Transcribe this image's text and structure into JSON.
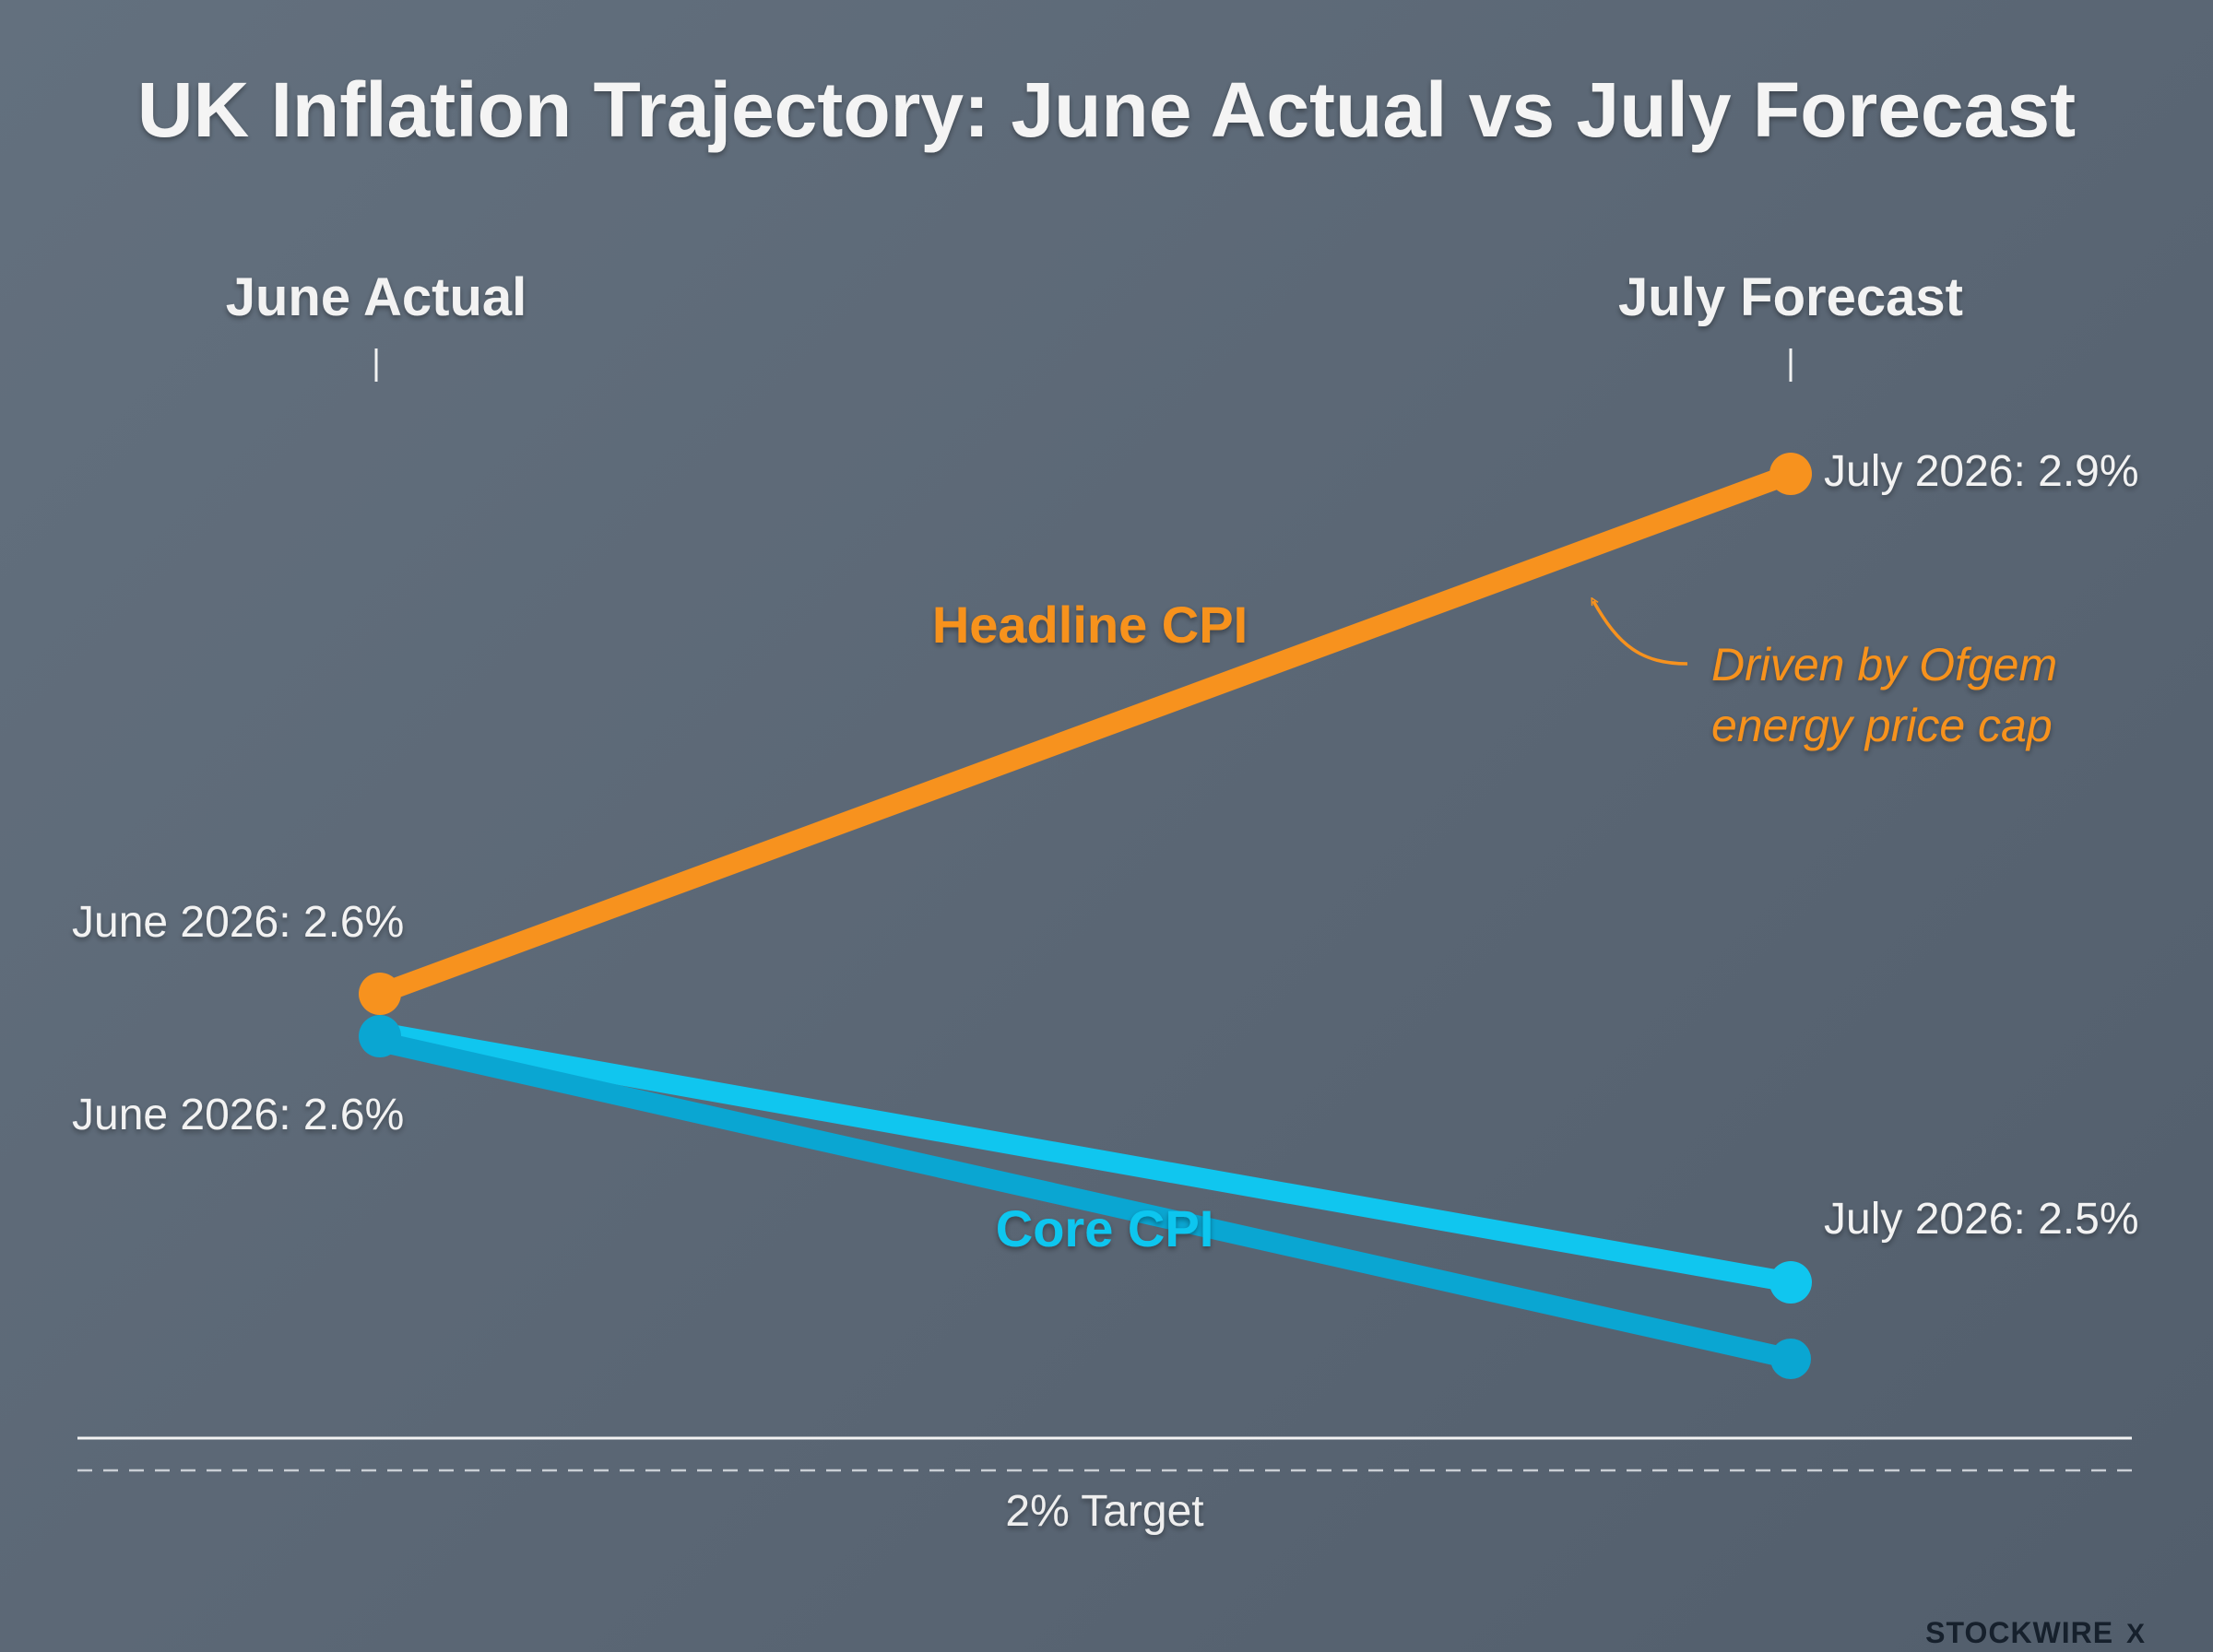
{
  "title": "UK Inflation Trajectory: June Actual vs July Forecast",
  "columns": {
    "left_label": "June Actual",
    "right_label": "July Forecast"
  },
  "annotation": {
    "line1": "Driven by Ofgem",
    "line2": "energy price cap"
  },
  "target_label": "2% Target",
  "brand": "STOCKWIRE",
  "brand_mark": "X",
  "colors": {
    "headline": "#f7921e",
    "core": "#10c6ef",
    "core_dark": "#0aa6d2",
    "text": "#f2f2f2"
  },
  "chart_data": {
    "type": "line",
    "categories": [
      "June Actual",
      "July Forecast"
    ],
    "series": [
      {
        "name": "Headline CPI",
        "values": [
          2.6,
          2.9
        ],
        "start_label": "June 2026: 2.6%",
        "end_label": "July 2026: 2.9%"
      },
      {
        "name": "Core CPI",
        "values": [
          2.6,
          2.5
        ],
        "start_label": "June 2026: 2.6%",
        "end_label": "July 2026: 2.5%"
      }
    ],
    "target": 2.0,
    "grid": false
  }
}
